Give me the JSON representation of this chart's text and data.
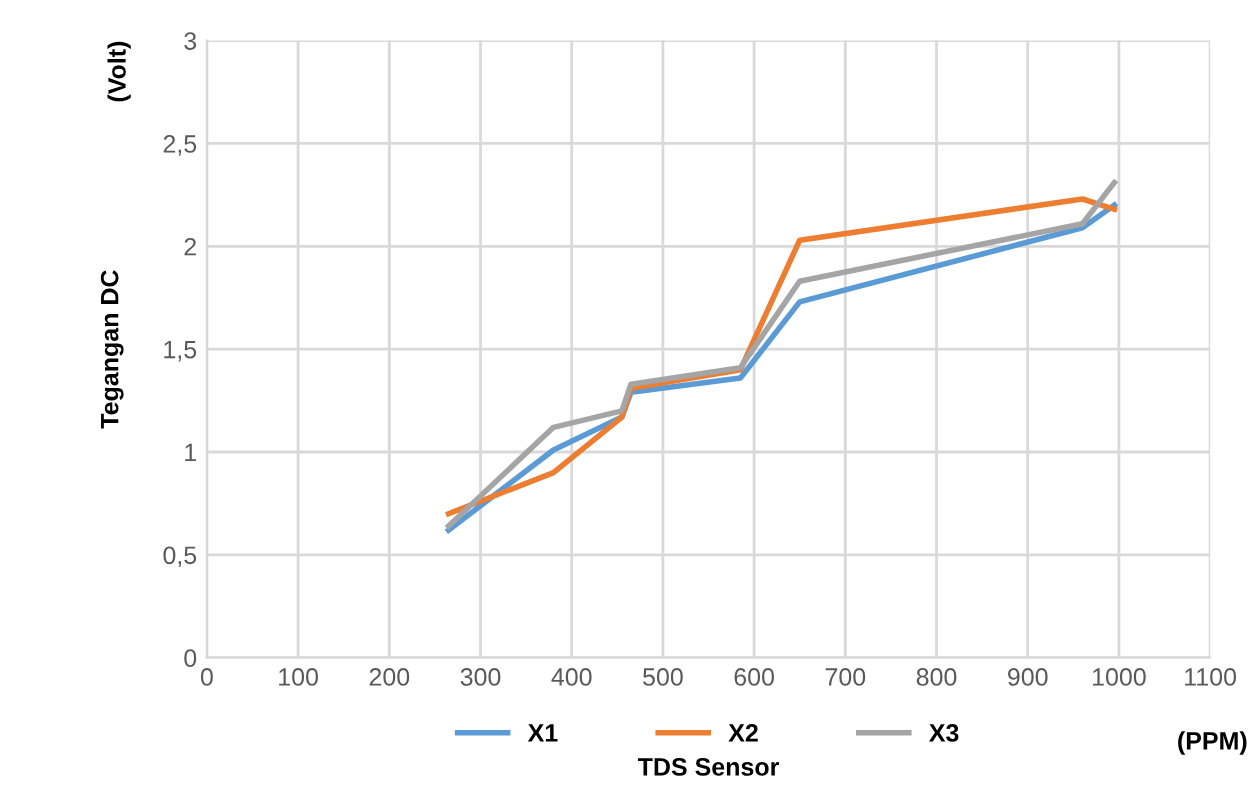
{
  "chart_data": {
    "type": "line",
    "xlabel": "TDS Sensor",
    "ylabel": "Tegangan DC",
    "annotations": [
      "(Volt)",
      "(PPM)"
    ],
    "xlim": [
      0,
      1100
    ],
    "xticks": [
      0,
      100,
      200,
      300,
      400,
      500,
      600,
      700,
      800,
      900,
      1000,
      1100
    ],
    "ylim": [
      0,
      3
    ],
    "yticks": [
      0,
      {
        "value": 0.5,
        "label": "0,5"
      },
      1,
      {
        "value": 1.5,
        "label": "1,5"
      },
      2,
      {
        "value": 2.5,
        "label": "2,5"
      },
      3
    ],
    "grid": true,
    "legend": "bottom",
    "marker": "none",
    "line_style": "solid",
    "x": [
      265,
      380,
      455,
      465,
      585,
      650,
      960,
      995
    ],
    "series": [
      {
        "name": "X1",
        "color": "#5b9bd5",
        "values": [
          0.62,
          1.01,
          1.17,
          1.29,
          1.36,
          1.73,
          2.09,
          2.2
        ]
      },
      {
        "name": "X2",
        "color": "#ed7d31",
        "values": [
          0.7,
          0.9,
          1.17,
          1.31,
          1.4,
          2.03,
          2.23,
          2.18
        ]
      },
      {
        "name": "X3",
        "color": "#a5a5a5",
        "values": [
          0.64,
          1.12,
          1.2,
          1.33,
          1.41,
          1.83,
          2.11,
          2.31
        ]
      }
    ]
  }
}
